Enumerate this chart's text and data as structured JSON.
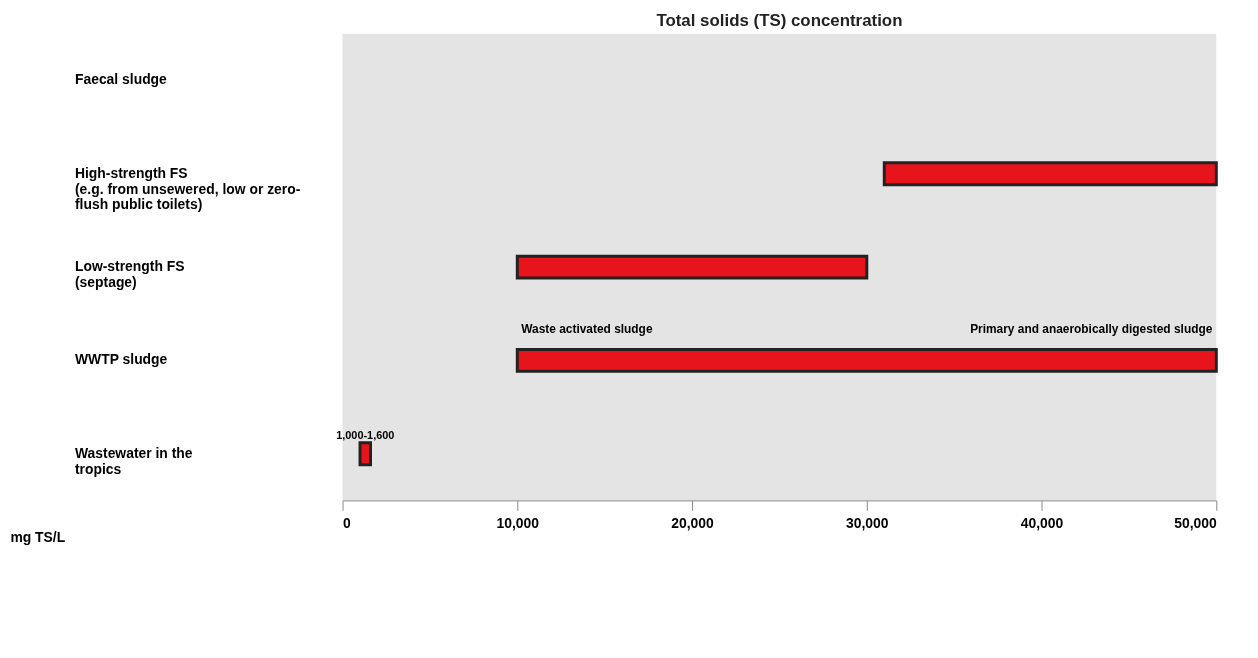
{
  "chart_data": {
    "type": "bar",
    "orientation": "horizontal",
    "title": "Total solids (TS) concentration",
    "xlabel": "mg TS/L",
    "categories": [
      "Faecal sludge",
      "High-strength FS\n(e.g. from unsewered, low or zero-\nflush public toilets)",
      "Low-strength FS\n(septage)",
      "WWTP sludge",
      "Wastewater in the\ntropics"
    ],
    "base": [
      null,
      31000,
      10000,
      10000,
      1000
    ],
    "values": [
      null,
      19000,
      20000,
      40000,
      600
    ],
    "value_labels": [
      null,
      null,
      null,
      null,
      "1,000-1,600"
    ],
    "color": "#e8141b",
    "xlim": [
      0,
      50000
    ],
    "xticks": [
      {
        "value": 0,
        "label": "0"
      },
      {
        "value": 10000,
        "label": "10,000"
      },
      {
        "value": 20000,
        "label": "20,000"
      },
      {
        "value": 30000,
        "label": "30,000"
      },
      {
        "value": 40000,
        "label": "40,000"
      },
      {
        "value": 50000,
        "label": "50,000"
      }
    ],
    "grid": false,
    "annotations": [
      {
        "text": "Waste activated sludge",
        "x": 10000,
        "y": "WWTP sludge"
      },
      {
        "text": "Primary and anaerobically digested sludge",
        "x": 50000,
        "y": "WWTP sludge"
      }
    ]
  }
}
